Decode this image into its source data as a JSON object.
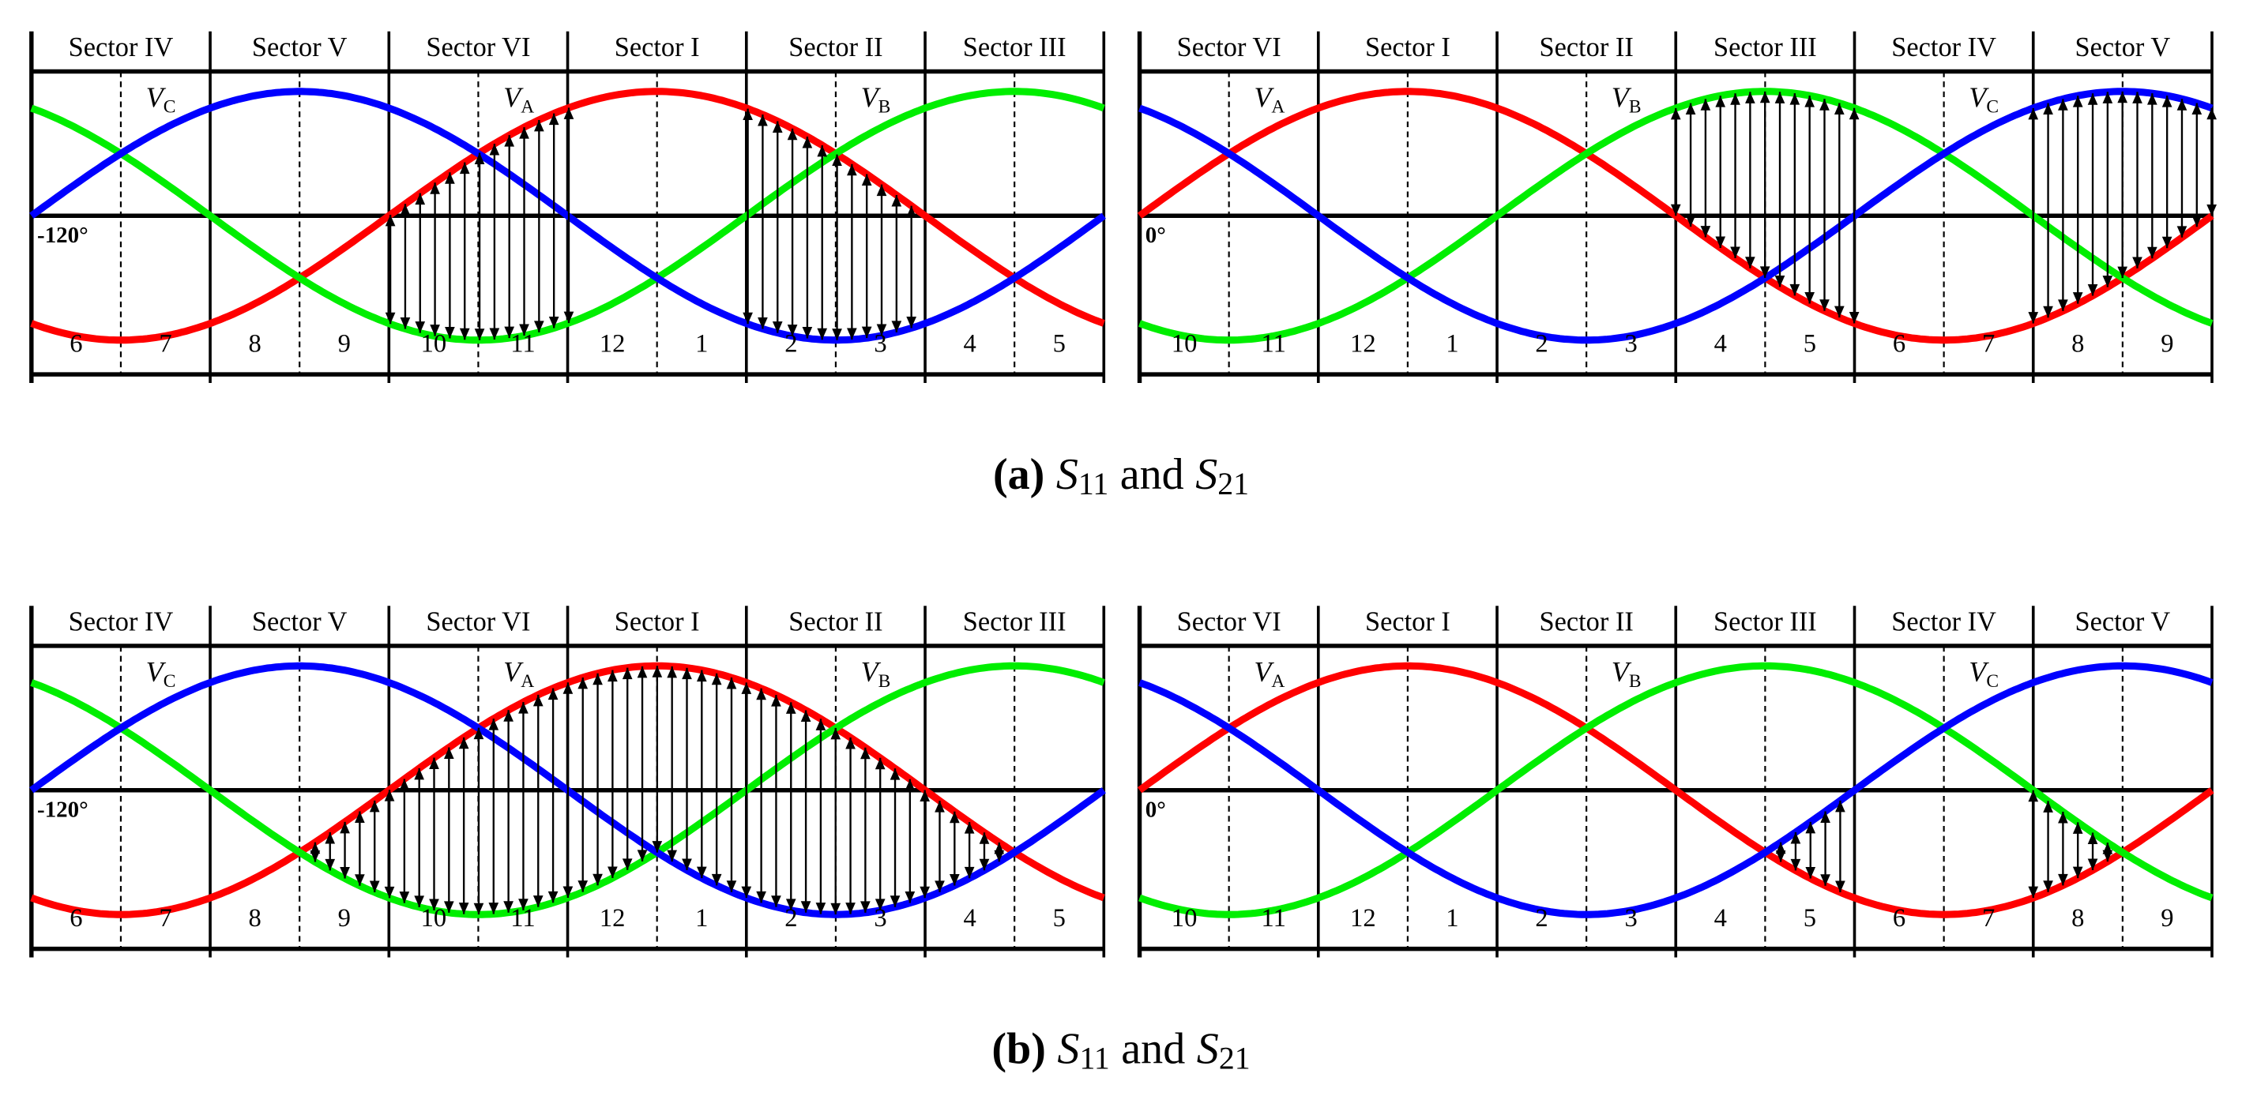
{
  "panels": [
    {
      "sectors": [
        "Sector IV",
        "Sector V",
        "Sector VI",
        "Sector I",
        "Sector II",
        "Sector III"
      ],
      "cells": [
        "6",
        "7",
        "8",
        "9",
        "10",
        "11",
        "12",
        "1",
        "2",
        "3",
        "4",
        "5"
      ],
      "phases": [
        {
          "symbol": "V",
          "sub": "C"
        },
        {
          "symbol": "V",
          "sub": "A"
        },
        {
          "symbol": "V",
          "sub": "B"
        }
      ],
      "start_angle": "-120°"
    },
    {
      "sectors": [
        "Sector VI",
        "Sector I",
        "Sector II",
        "Sector III",
        "Sector IV",
        "Sector V"
      ],
      "cells": [
        "10",
        "11",
        "12",
        "1",
        "2",
        "3",
        "4",
        "5",
        "6",
        "7",
        "8",
        "9"
      ],
      "phases": [
        {
          "symbol": "V",
          "sub": "A"
        },
        {
          "symbol": "V",
          "sub": "B"
        },
        {
          "symbol": "V",
          "sub": "C"
        }
      ],
      "start_angle": "0°"
    },
    {
      "sectors": [
        "Sector IV",
        "Sector V",
        "Sector VI",
        "Sector I",
        "Sector II",
        "Sector III"
      ],
      "cells": [
        "6",
        "7",
        "8",
        "9",
        "10",
        "11",
        "12",
        "1",
        "2",
        "3",
        "4",
        "5"
      ],
      "phases": [
        {
          "symbol": "V",
          "sub": "C"
        },
        {
          "symbol": "V",
          "sub": "A"
        },
        {
          "symbol": "V",
          "sub": "B"
        }
      ],
      "start_angle": "-120°"
    },
    {
      "sectors": [
        "Sector VI",
        "Sector I",
        "Sector II",
        "Sector III",
        "Sector IV",
        "Sector V"
      ],
      "cells": [
        "10",
        "11",
        "12",
        "1",
        "2",
        "3",
        "4",
        "5",
        "6",
        "7",
        "8",
        "9"
      ],
      "phases": [
        {
          "symbol": "V",
          "sub": "A"
        },
        {
          "symbol": "V",
          "sub": "B"
        },
        {
          "symbol": "V",
          "sub": "C"
        }
      ],
      "start_angle": "0°"
    }
  ],
  "captions": [
    {
      "label": "(a)",
      "term1": "S",
      "sub1": "11",
      "joiner": "and",
      "term2": "S",
      "sub2": "21"
    },
    {
      "label": "(b)",
      "term1": "S",
      "sub1": "11",
      "joiner": "and",
      "term2": "S",
      "sub2": "21"
    }
  ]
}
